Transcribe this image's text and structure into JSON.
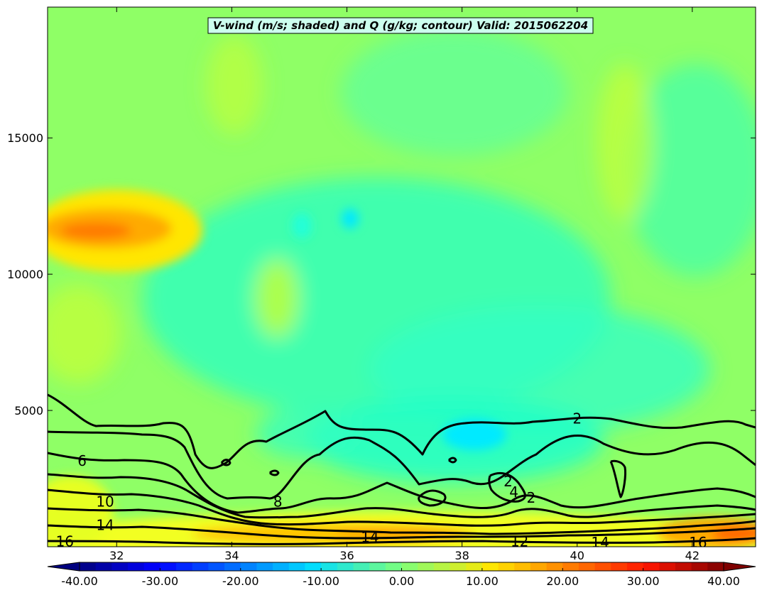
{
  "chart_data": {
    "type": "heatmap",
    "title": "V-wind (m/s; shaded) and Q (g/kg; contour) Valid: 2015062204",
    "xlabel": "",
    "ylabel": "",
    "xlim": [
      30.8,
      43.1
    ],
    "ylim": [
      0,
      19800
    ],
    "x_ticks": [
      "32",
      "34",
      "36",
      "38",
      "40",
      "42"
    ],
    "y_ticks": [
      "5000",
      "10000",
      "15000"
    ],
    "colorbar": {
      "range": [
        -40,
        40
      ],
      "tick_labels": [
        "-40.00",
        "-30.00",
        "-20.00",
        "-10.00",
        "0.00",
        "10.00",
        "20.00",
        "30.00",
        "40.00"
      ],
      "extend": "both"
    },
    "contour_labels": [
      {
        "text": "2",
        "x": 40.0,
        "y": 4700
      },
      {
        "text": "6",
        "x": 31.4,
        "y": 3150
      },
      {
        "text": "8",
        "x": 34.8,
        "y": 1650
      },
      {
        "text": "10",
        "x": 31.8,
        "y": 1650
      },
      {
        "text": "14",
        "x": 31.8,
        "y": 800
      },
      {
        "text": "16",
        "x": 31.1,
        "y": 200
      },
      {
        "text": "14",
        "x": 36.4,
        "y": 350
      },
      {
        "text": "12",
        "x": 39.0,
        "y": 200
      },
      {
        "text": "14",
        "x": 40.4,
        "y": 150
      },
      {
        "text": "16",
        "x": 42.1,
        "y": 150
      },
      {
        "text": "2",
        "x": 38.8,
        "y": 2400
      },
      {
        "text": "4",
        "x": 38.9,
        "y": 2000
      },
      {
        "text": "2",
        "x": 39.2,
        "y": 1800
      }
    ],
    "features": [
      {
        "name": "upper-positive-jet",
        "x": [
          30.8,
          33.4
        ],
        "y": [
          10600,
          12400
        ],
        "peak": 22
      },
      {
        "name": "boundary-layer-positive",
        "x": [
          30.8,
          43.1
        ],
        "y": [
          0,
          1300
        ],
        "peak": 26
      },
      {
        "name": "midlevel-negative",
        "x": [
          38.0,
          38.9
        ],
        "y": [
          3600,
          4800
        ],
        "peak": -10
      }
    ]
  }
}
